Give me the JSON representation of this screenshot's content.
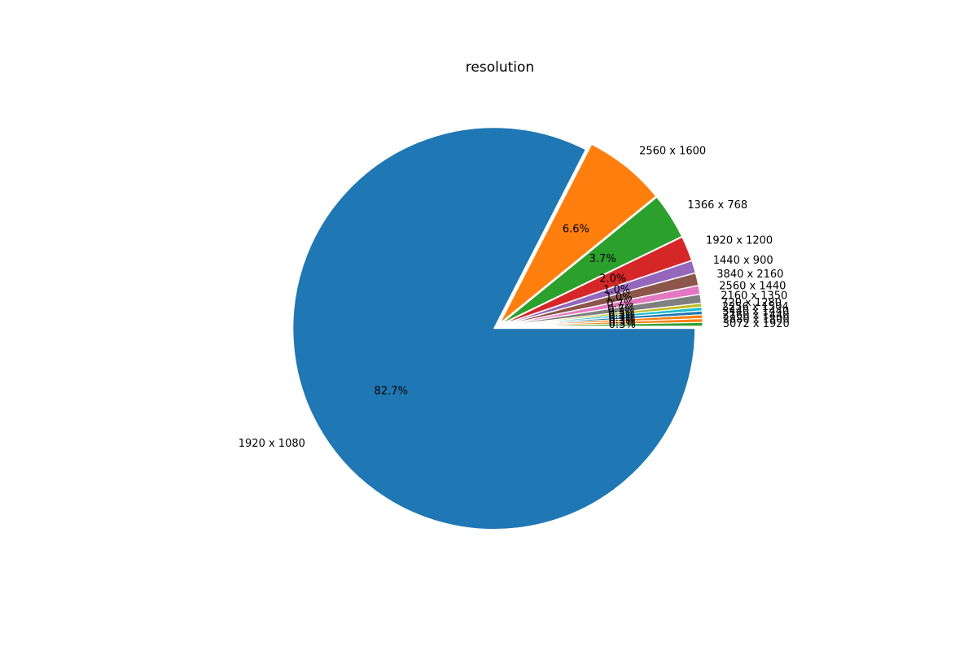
{
  "chart_data": {
    "type": "pie",
    "title": "resolution",
    "slices": [
      {
        "label": "1920 x 1080",
        "value": 82.7,
        "pct": "82.7%",
        "color": "#1f77b4"
      },
      {
        "label": "2560 x 1600",
        "value": 6.6,
        "pct": "6.6%",
        "color": "#ff7f0e"
      },
      {
        "label": "1366 x 768",
        "value": 3.7,
        "pct": "3.7%",
        "color": "#2ca02c"
      },
      {
        "label": "1920 x 1200",
        "value": 2.0,
        "pct": "2.0%",
        "color": "#d62728"
      },
      {
        "label": "1440 x 900",
        "value": 1.0,
        "pct": "1.0%",
        "color": "#9467bd"
      },
      {
        "label": "3840 x 2160",
        "value": 1.0,
        "pct": "1.0%",
        "color": "#8c564b"
      },
      {
        "label": "2560 x 1440",
        "value": 0.7,
        "pct": "0.7%",
        "color": "#e377c2"
      },
      {
        "label": "2160 x 1350",
        "value": 0.7,
        "pct": "0.7%",
        "color": "#7f7f7f"
      },
      {
        "label": "720 x 1280",
        "value": 0.3,
        "pct": "0.3%",
        "color": "#bcbd22"
      },
      {
        "label": "2256 x 1504",
        "value": 0.3,
        "pct": "0.3%",
        "color": "#17becf"
      },
      {
        "label": "3440 x 1440",
        "value": 0.3,
        "pct": "0.3%",
        "color": "#1f77b4"
      },
      {
        "label": "2160 x 1440",
        "value": 0.3,
        "pct": "0.3%",
        "color": "#ff7f0e"
      },
      {
        "label": "2880 x 1800",
        "value": 0.3,
        "pct": "0.3%",
        "color": "#ff7f0e"
      },
      {
        "label": "3072 x 1920",
        "value": 0.3,
        "pct": "0.3%",
        "color": "#2ca02c"
      }
    ],
    "start_angle_deg": 0,
    "direction": "clockwise",
    "explode_all": true,
    "edge_color": "#ffffff"
  }
}
